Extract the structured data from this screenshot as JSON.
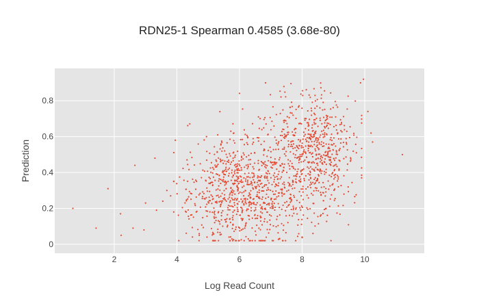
{
  "chart_data": {
    "type": "scatter",
    "title": "RDN25-1 Spearman 0.4585 (3.68e-80)",
    "xlabel": "Log Read Count",
    "ylabel": "Prediction",
    "xlim": [
      0.1,
      11.9
    ],
    "ylim": [
      -0.05,
      0.98
    ],
    "xticks": [
      2,
      4,
      6,
      8,
      10
    ],
    "yticks": [
      0,
      0.2,
      0.4,
      0.6,
      0.8
    ],
    "xtick_labels": [
      "2",
      "4",
      "6",
      "8",
      "10"
    ],
    "ytick_labels": [
      "0",
      "0.2",
      "0.4",
      "0.6",
      "0.8"
    ],
    "grid": true,
    "marker_color": "#e24a33",
    "plot_background": "#e5e5e5",
    "grid_color": "#ffffff",
    "n_points": 1500,
    "spearman": 0.4585,
    "p_value": "3.68e-80",
    "outlier_points": [
      {
        "x": 0.68,
        "y": 0.2
      },
      {
        "x": 1.42,
        "y": 0.09
      },
      {
        "x": 1.8,
        "y": 0.31
      },
      {
        "x": 2.2,
        "y": 0.17
      },
      {
        "x": 2.22,
        "y": 0.05
      },
      {
        "x": 2.6,
        "y": 0.09
      },
      {
        "x": 2.66,
        "y": 0.44
      },
      {
        "x": 2.95,
        "y": 0.08
      },
      {
        "x": 3.0,
        "y": 0.23
      },
      {
        "x": 3.3,
        "y": 0.48
      },
      {
        "x": 3.35,
        "y": 0.19
      },
      {
        "x": 3.55,
        "y": 0.24
      },
      {
        "x": 3.68,
        "y": 0.3
      },
      {
        "x": 3.8,
        "y": 0.27
      },
      {
        "x": 3.9,
        "y": 0.35
      },
      {
        "x": 3.95,
        "y": 0.58
      },
      {
        "x": 9.96,
        "y": 0.92
      },
      {
        "x": 10.1,
        "y": 0.74
      },
      {
        "x": 10.2,
        "y": 0.62
      },
      {
        "x": 10.25,
        "y": 0.57
      },
      {
        "x": 11.2,
        "y": 0.5
      }
    ],
    "clusters": [
      {
        "cx": 6.0,
        "cy": 0.28,
        "sx": 0.9,
        "sy": 0.15,
        "n": 700
      },
      {
        "cx": 8.5,
        "cy": 0.52,
        "sx": 0.6,
        "sy": 0.16,
        "n": 500
      },
      {
        "cx": 7.2,
        "cy": 0.45,
        "sx": 1.1,
        "sy": 0.2,
        "n": 300
      }
    ]
  }
}
